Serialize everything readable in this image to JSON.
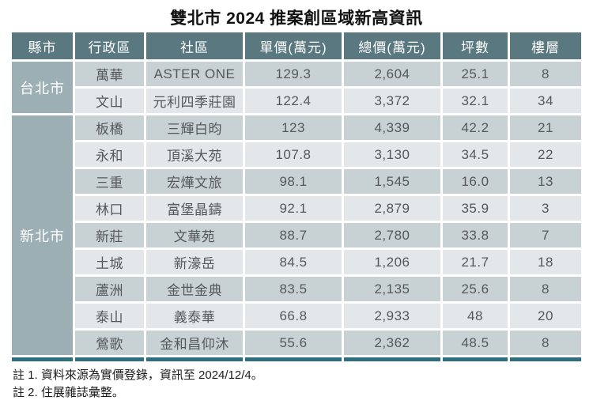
{
  "title": "雙北市 2024 推案創區域新高資訊",
  "table": {
    "columns": [
      "縣市",
      "行政區",
      "社區",
      "單價(萬元)",
      "總價(萬元)",
      "坪數",
      "樓層"
    ],
    "groups": [
      {
        "city": "台北市",
        "rows": [
          {
            "district": "萬華",
            "community": "ASTER ONE",
            "unit_price": "129.3",
            "total_price": "2,604",
            "ping": "25.1",
            "floor": "8"
          },
          {
            "district": "文山",
            "community": "元利四季莊園",
            "unit_price": "122.4",
            "total_price": "3,372",
            "ping": "32.1",
            "floor": "34"
          }
        ]
      },
      {
        "city": "新北市",
        "rows": [
          {
            "district": "板橋",
            "community": "三輝白昀",
            "unit_price": "123",
            "total_price": "4,339",
            "ping": "42.2",
            "floor": "21"
          },
          {
            "district": "永和",
            "community": "頂溪大苑",
            "unit_price": "107.8",
            "total_price": "3,130",
            "ping": "34.5",
            "floor": "22"
          },
          {
            "district": "三重",
            "community": "宏燁文旅",
            "unit_price": "98.1",
            "total_price": "1,545",
            "ping": "16.0",
            "floor": "13"
          },
          {
            "district": "林口",
            "community": "富堡晶鑄",
            "unit_price": "92.1",
            "total_price": "2,879",
            "ping": "35.9",
            "floor": "3"
          },
          {
            "district": "新莊",
            "community": "文華苑",
            "unit_price": "88.7",
            "total_price": "2,780",
            "ping": "33.8",
            "floor": "7"
          },
          {
            "district": "土城",
            "community": "新濠岳",
            "unit_price": "84.5",
            "total_price": "1,206",
            "ping": "21.7",
            "floor": "18"
          },
          {
            "district": "蘆洲",
            "community": "金世金典",
            "unit_price": "83.5",
            "total_price": "2,135",
            "ping": "25.6",
            "floor": "8"
          },
          {
            "district": "泰山",
            "community": "義泰華",
            "unit_price": "66.8",
            "total_price": "2,933",
            "ping": "48",
            "floor": "20"
          },
          {
            "district": "鶯歌",
            "community": "金和昌仰沐",
            "unit_price": "55.6",
            "total_price": "2,362",
            "ping": "48.5",
            "floor": "8"
          }
        ]
      }
    ]
  },
  "notes": [
    "註 1. 資料來源為實價登錄，資訊至 2024/12/4。",
    "註 2. 住展雜誌彙整。"
  ],
  "colors": {
    "header_bg": "#597880",
    "group_bg": "#9cafb4",
    "row_dark": "#c8d1d3",
    "row_light": "#e3e7e9",
    "accent_bar": "#2e6e7e",
    "cell_text": "#54585c"
  },
  "chart_data": {
    "type": "table",
    "title": "雙北市 2024 推案創區域新高資訊",
    "columns": [
      "縣市",
      "行政區",
      "社區",
      "單價(萬元)",
      "總價(萬元)",
      "坪數",
      "樓層"
    ],
    "rows": [
      [
        "台北市",
        "萬華",
        "ASTER ONE",
        129.3,
        2604,
        25.1,
        8
      ],
      [
        "台北市",
        "文山",
        "元利四季莊園",
        122.4,
        3372,
        32.1,
        34
      ],
      [
        "新北市",
        "板橋",
        "三輝白昀",
        123,
        4339,
        42.2,
        21
      ],
      [
        "新北市",
        "永和",
        "頂溪大苑",
        107.8,
        3130,
        34.5,
        22
      ],
      [
        "新北市",
        "三重",
        "宏燁文旅",
        98.1,
        1545,
        16.0,
        13
      ],
      [
        "新北市",
        "林口",
        "富堡晶鑄",
        92.1,
        2879,
        35.9,
        3
      ],
      [
        "新北市",
        "新莊",
        "文華苑",
        88.7,
        2780,
        33.8,
        7
      ],
      [
        "新北市",
        "土城",
        "新濠岳",
        84.5,
        1206,
        21.7,
        18
      ],
      [
        "新北市",
        "蘆洲",
        "金世金典",
        83.5,
        2135,
        25.6,
        8
      ],
      [
        "新北市",
        "泰山",
        "義泰華",
        66.8,
        2933,
        48,
        20
      ],
      [
        "新北市",
        "鶯歌",
        "金和昌仰沐",
        55.6,
        2362,
        48.5,
        8
      ]
    ],
    "notes": [
      "資料來源為實價登錄，資訊至 2024/12/4",
      "住展雜誌彙整"
    ]
  }
}
